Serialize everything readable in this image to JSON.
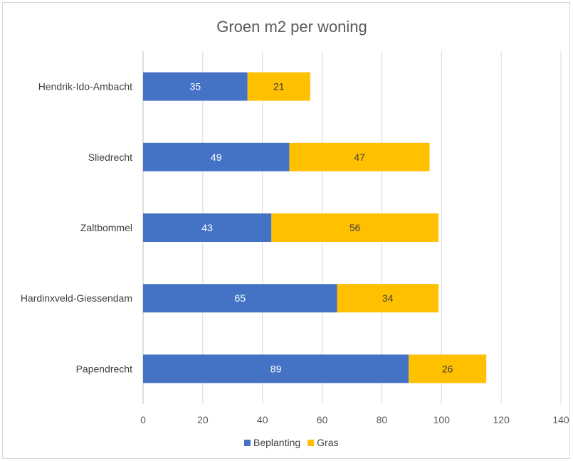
{
  "chart_data": {
    "type": "bar",
    "orientation": "horizontal",
    "stacked": true,
    "title": "Groen m2 per woning",
    "categories": [
      "Hendrik-Ido-Ambacht",
      "Sliedrecht",
      "Zaltbommel",
      "Hardinxveld-Giessendam",
      "Papendrecht"
    ],
    "series": [
      {
        "name": "Beplanting",
        "color": "#4472C4",
        "label_color": "#ffffff",
        "values": [
          35,
          49,
          43,
          65,
          89
        ]
      },
      {
        "name": "Gras",
        "color": "#FFC000",
        "label_color": "#404040",
        "values": [
          21,
          47,
          56,
          34,
          26
        ]
      }
    ],
    "xlim": [
      0,
      140
    ],
    "xticks": [
      0,
      20,
      40,
      60,
      80,
      100,
      120,
      140
    ],
    "grid": "vertical",
    "legend": "bottom"
  }
}
